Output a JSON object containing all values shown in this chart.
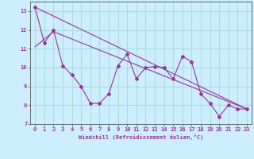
{
  "xlabel": "Windchill (Refroidissement éolien,°C)",
  "bg_color": "#cceeff",
  "grid_color": "#aadddd",
  "line_color": "#993399",
  "xlim": [
    -0.5,
    23.5
  ],
  "ylim": [
    7.0,
    13.5
  ],
  "yticks": [
    7,
    8,
    9,
    10,
    11,
    12,
    13
  ],
  "xticks": [
    0,
    1,
    2,
    3,
    4,
    5,
    6,
    7,
    8,
    9,
    10,
    11,
    12,
    13,
    14,
    15,
    16,
    17,
    18,
    19,
    20,
    21,
    22,
    23
  ],
  "series1_x": [
    0,
    1,
    2,
    3,
    4,
    5,
    6,
    7,
    8,
    9,
    10,
    11,
    12,
    13,
    14,
    15,
    16,
    17,
    18,
    19,
    20,
    21,
    22,
    23
  ],
  "series1_y": [
    13.2,
    11.3,
    12.0,
    10.1,
    9.6,
    9.0,
    8.1,
    8.1,
    8.6,
    10.1,
    10.7,
    9.4,
    10.0,
    10.05,
    10.0,
    9.4,
    10.6,
    10.3,
    8.6,
    8.1,
    7.4,
    8.0,
    7.8,
    7.8
  ],
  "series2_x": [
    0,
    23
  ],
  "series2_y": [
    13.2,
    7.8
  ],
  "series3_x": [
    0,
    2,
    23
  ],
  "series3_y": [
    11.1,
    11.9,
    7.8
  ],
  "xlabel_fontsize": 5.0,
  "tick_fontsize": 5.0
}
